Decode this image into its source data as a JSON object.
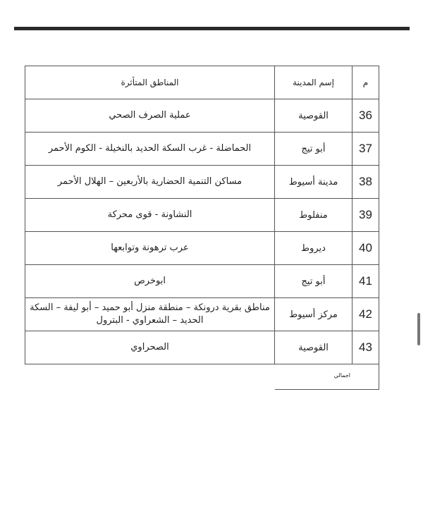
{
  "table": {
    "headers": {
      "num": "م",
      "city": "إسم المدينة",
      "areas": "المناطق المتأثرة"
    },
    "rows": [
      {
        "num": "36",
        "city": "القوصية",
        "areas": "عملية الصرف الصحي"
      },
      {
        "num": "37",
        "city": "أبو تيج",
        "areas": "الحماضلة - غرب السكة الحديد بالنخيلة - الكوم الأحمر"
      },
      {
        "num": "38",
        "city": "مدينة أسيوط",
        "areas": "مساكن التنمية الحضارية بالأربعين – الهلال الأحمر"
      },
      {
        "num": "39",
        "city": "منفلوط",
        "areas": "النشاونة  - قوى محركة"
      },
      {
        "num": "40",
        "city": "ديروط",
        "areas": "عرب ترهونة وتوابعها"
      },
      {
        "num": "41",
        "city": "أبو تيج",
        "areas": "ابوخرص"
      },
      {
        "num": "42",
        "city": "مركز أسيوط",
        "areas": "مناطق بقرية درونكة – منطقة منزل أبو حميد – أبو ليفة – السكة الحديد – الشعراوي - البترول"
      },
      {
        "num": "43",
        "city": "القوصية",
        "areas": "الصحراوي"
      }
    ],
    "total_label": "اجمالي"
  }
}
